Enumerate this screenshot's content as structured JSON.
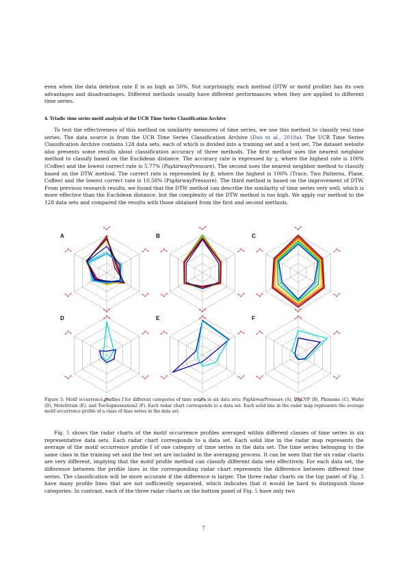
{
  "para_top": "even when the data deletion rate E is as high as 50%. Not surprisingly, each method (DTW or motif profile) has its own advantages and disadvantages. Different methods usually have different performances when they are applied to different time series.",
  "section_heading": "4.  Triadic time series motif analysis of the UCR Time Series Classification Archive",
  "para_mid": {
    "before_cite": "To test the effectiveness of this method on similarity measures of time series, we use this method to classify real time series. The data source is from the UCR Time Series Classification Archive (",
    "cite": "Dau et al., 2018a",
    "after_cite": "). The UCR Time Series Classification Archive contains 128 data sets, each of which is divided into a training set and a test set. The dataset website also presents some results about classification accuracy of three methods. The first method uses the nearest neighbor method to classify based on the Euclidean distance. The accuracy rate is expressed by γ, where the highest rate is 100% (Coffee) and the lowest correct rate is 5.77% (PigAirwayPressure). The second uses the nearest neighbor method to classify based on the DTW method. The correct rate is represented by β, where the highest is 100% (Trace, Two Patterns, Plane, Coffee) and the lowest correct rate is 10.58% (PigAirwayPressure). The third method is based on the improvement of DTW. From previous research results, we found that the DTW method can describe the similarity of time series very well, which is more effective than the Euclidean distance, but the complexity of the DTW method is too high. We apply our method to the 128 data sets and compared the results with those obtained from the first and second methods."
  },
  "figure": {
    "panel_labels": [
      "A",
      "B",
      "C",
      "D",
      "E",
      "F"
    ],
    "caption": "Figure 5:  Motif occurrence profiles f for different categories of time series in six data sets: PigAirwayPressure (A), PigCVP (B), Phoneme (C), Wafer (D), MoteStrain (E), and ToeSegmentation2 (F). Each radar chart corresponds to a data set. Each solid line in the radar map represents the average motif occurrence profile of a class of time series in the data set."
  },
  "para_bottom": {
    "p1": "Fig. ",
    "ref1": "5",
    "p2": " shows the radar charts of the motif occurrence profiles averaged within different classes of time series in six representative data sets. Each radar chart corresponds to a data set. Each solid line in the radar map represents the average of the motif occurrence profile f of one category of time series in the data set. The time series belonging to the same class in the training set and the test set are included in the averaging process. It can be seen that the six radar charts are very different, implying that the motif profile method can classify different data sets effectively. For each data set, the difference between the profile lines in the corresponding radar chart represents the difference between different time series. The classification will be more accurate if the difference is larger. The three radar charts on the top panel of Fig. ",
    "ref2": "5",
    "p3": " have many profile lines that are not sufficiently separated, which indicates that it would be hard to distinguish those categories. In contrast, each of the three radar charts on the bottom panel of Fig. ",
    "ref3": "5",
    "p4": " have only two"
  },
  "page_number": "7",
  "colors": {
    "link": "#1f3fb0",
    "motif_glyph": "#e0281e",
    "grid": "#9a9a9a"
  },
  "chart_data": [
    {
      "type": "radar",
      "panel": "A",
      "axes": 6,
      "rmax": 1,
      "series": [
        {
          "color": "#8b0000",
          "values": [
            0.98,
            0.25,
            0.55,
            0.25,
            0.3,
            0.6
          ]
        },
        {
          "color": "#d01010",
          "values": [
            0.96,
            0.3,
            0.53,
            0.28,
            0.33,
            0.62
          ]
        },
        {
          "color": "#ff6000",
          "values": [
            0.92,
            0.36,
            0.5,
            0.3,
            0.36,
            0.62
          ]
        },
        {
          "color": "#ffd000",
          "values": [
            0.85,
            0.38,
            0.48,
            0.32,
            0.4,
            0.64
          ]
        },
        {
          "color": "#00d8d8",
          "values": [
            0.55,
            0.42,
            0.45,
            0.28,
            0.42,
            0.58
          ]
        },
        {
          "color": "#00a0ff",
          "values": [
            0.5,
            0.45,
            0.4,
            0.26,
            0.44,
            0.55
          ]
        },
        {
          "color": "#1010c0",
          "values": [
            0.7,
            0.4,
            0.42,
            0.24,
            0.38,
            0.6
          ]
        },
        {
          "color": "#000080",
          "values": [
            0.9,
            0.33,
            0.5,
            0.22,
            0.35,
            0.62
          ]
        }
      ]
    },
    {
      "type": "radar",
      "panel": "B",
      "axes": 6,
      "rmax": 1,
      "series": [
        {
          "color": "#00c000",
          "values": [
            1.0,
            0.58,
            0.56,
            0.42,
            0.56,
            0.58
          ]
        },
        {
          "color": "#ffd000",
          "values": [
            0.96,
            0.56,
            0.55,
            0.4,
            0.55,
            0.57
          ]
        },
        {
          "color": "#ff6000",
          "values": [
            0.94,
            0.58,
            0.57,
            0.4,
            0.57,
            0.58
          ]
        },
        {
          "color": "#d01010",
          "values": [
            0.92,
            0.56,
            0.55,
            0.38,
            0.55,
            0.56
          ]
        },
        {
          "color": "#8b0000",
          "values": [
            0.9,
            0.55,
            0.54,
            0.36,
            0.55,
            0.55
          ]
        },
        {
          "color": "#1010c0",
          "values": [
            0.88,
            0.5,
            0.5,
            0.42,
            0.5,
            0.5
          ]
        }
      ]
    },
    {
      "type": "radar",
      "panel": "C",
      "axes": 6,
      "rmax": 1,
      "series": [
        {
          "color": "#8b0000",
          "values": [
            1.0,
            0.75,
            0.8,
            0.92,
            0.8,
            0.75
          ]
        },
        {
          "color": "#d01010",
          "values": [
            0.96,
            0.72,
            0.78,
            0.88,
            0.78,
            0.72
          ]
        },
        {
          "color": "#ff6000",
          "values": [
            0.92,
            0.7,
            0.75,
            0.84,
            0.75,
            0.7
          ]
        },
        {
          "color": "#ffd000",
          "values": [
            0.88,
            0.68,
            0.7,
            0.8,
            0.7,
            0.68
          ]
        },
        {
          "color": "#00c000",
          "values": [
            0.84,
            0.65,
            0.62,
            0.76,
            0.62,
            0.65
          ]
        },
        {
          "color": "#00d8d8",
          "values": [
            0.8,
            0.62,
            0.55,
            0.72,
            0.55,
            0.62
          ]
        },
        {
          "color": "#1010c0",
          "values": [
            0.76,
            0.6,
            0.5,
            0.7,
            0.5,
            0.6
          ]
        }
      ]
    },
    {
      "type": "radar",
      "panel": "D",
      "axes": 6,
      "rmax": 1,
      "series": [
        {
          "color": "#00e0e0",
          "values": [
            0.88,
            0.22,
            0.1,
            0.15,
            0.12,
            0.1
          ]
        },
        {
          "color": "#0000d0",
          "values": [
            0.1,
            0.28,
            0.22,
            0.2,
            0.16,
            0.22
          ]
        }
      ]
    },
    {
      "type": "radar",
      "panel": "E",
      "axes": 6,
      "rmax": 1,
      "series": [
        {
          "color": "#0000d0",
          "values": [
            0.92,
            0.82,
            0.15,
            0.18,
            0.92,
            0.2
          ]
        },
        {
          "color": "#00e0e0",
          "values": [
            0.9,
            0.8,
            0.4,
            0.3,
            0.15,
            0.15
          ]
        }
      ]
    },
    {
      "type": "radar",
      "panel": "F",
      "axes": 6,
      "rmax": 1,
      "series": [
        {
          "color": "#00e0e0",
          "values": [
            0.65,
            0.88,
            0.25,
            0.1,
            0.05,
            0.2
          ]
        },
        {
          "color": "#0000d0",
          "values": [
            0.45,
            0.68,
            0.2,
            0.12,
            0.08,
            0.1
          ]
        }
      ]
    }
  ]
}
